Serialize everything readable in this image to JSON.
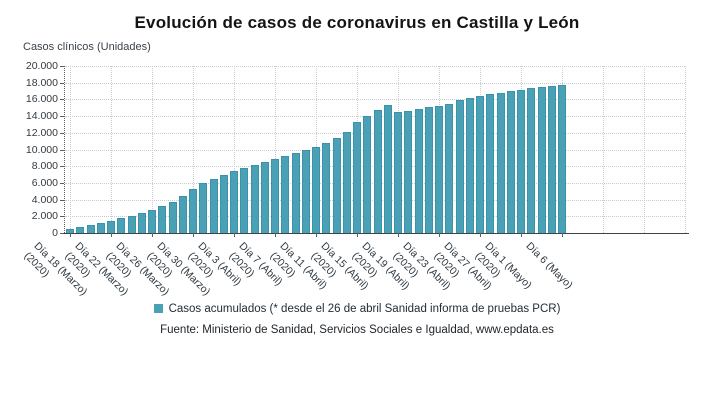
{
  "title": "Evolución de casos de coronavirus en Castilla y León",
  "unit_label": "Casos clínicos (Unidades)",
  "legend": {
    "label": "Casos acumulados (* desde el 26 de abril Sanidad informa de pruebas PCR)",
    "marker_color": "#4aa0b5"
  },
  "source": "Fuente: Ministerio de Sanidad, Servicios Sociales e Igualdad, www.epdata.es",
  "colors": {
    "bar": "#4aa0b5",
    "bar_edge": "#3a93a9",
    "grid": "#c7ccd1",
    "axis": "#3f4449",
    "text": "#2e3942"
  },
  "chart_data": {
    "type": "bar",
    "title": "Evolución de casos de coronavirus en Castilla y León",
    "ylabel": "Casos clínicos (Unidades)",
    "xlabel": "",
    "ylim": [
      0,
      20000
    ],
    "grid": "dotted",
    "legend_position": "bottom",
    "y_ticks": [
      {
        "value": 0,
        "label": "0"
      },
      {
        "value": 2000,
        "label": "2.000"
      },
      {
        "value": 4000,
        "label": "4.000"
      },
      {
        "value": 6000,
        "label": "6.000"
      },
      {
        "value": 8000,
        "label": "8.000"
      },
      {
        "value": 10000,
        "label": "10.000"
      },
      {
        "value": 12000,
        "label": "12.000"
      },
      {
        "value": 14000,
        "label": "14.000"
      },
      {
        "value": 16000,
        "label": "16.000"
      },
      {
        "value": 18000,
        "label": "18.000"
      },
      {
        "value": 20000,
        "label": "20.000"
      }
    ],
    "categories": [
      "Día 18 (Marzo)",
      "Día 19 (Marzo)",
      "Día 20 (Marzo)",
      "Día 21 (Marzo)",
      "Día 22 (Marzo)",
      "Día 23 (Marzo)",
      "Día 24 (Marzo)",
      "Día 25 (Marzo)",
      "Día 26 (Marzo)",
      "Día 27 (Marzo)",
      "Día 28 (Marzo)",
      "Día 29 (Marzo)",
      "Día 30 (Marzo)",
      "Día 31 (Marzo)",
      "Día 1 (Abril)",
      "Día 2 (Abril)",
      "Día 3 (Abril)",
      "Día 4 (Abril)",
      "Día 5 (Abril)",
      "Día 6 (Abril)",
      "Día 7 (Abril)",
      "Día 8 (Abril)",
      "Día 9 (Abril)",
      "Día 10 (Abril)",
      "Día 11 (Abril)",
      "Día 12 (Abril)",
      "Día 13 (Abril)",
      "Día 14 (Abril)",
      "Día 15 (Abril)",
      "Día 16 (Abril)",
      "Día 17 (Abril)",
      "Día 18 (Abril)",
      "Día 19 (Abril)",
      "Día 20 (Abril)",
      "Día 21 (Abril)",
      "Día 22 (Abril)",
      "Día 23 (Abril)",
      "Día 24 (Abril)",
      "Día 25 (Abril)",
      "Día 26 (Abril)",
      "Día 27 (Abril)",
      "Día 28 (Abril)",
      "Día 29 (Abril)",
      "Día 30 (Abril)",
      "Día 1 (Mayo)",
      "Día 2 (Mayo)",
      "Día 3 (Mayo)",
      "Día 4 (Mayo)",
      "Día 6 (Mayo)"
    ],
    "values": [
      500,
      700,
      950,
      1200,
      1475,
      1750,
      2050,
      2400,
      2800,
      3250,
      3700,
      4400,
      5300,
      6000,
      6500,
      6950,
      7400,
      7800,
      8150,
      8500,
      8850,
      9200,
      9550,
      9900,
      10300,
      10800,
      11400,
      12100,
      13350,
      14000,
      14700,
      15280,
      14450,
      14650,
      14850,
      15050,
      15250,
      15500,
      15900,
      16150,
      16400,
      16650,
      16800,
      17000,
      17150,
      17350,
      17500,
      17620,
      17700
    ],
    "series_name": "Casos acumulados (* desde el 26 de abril Sanidad informa de pruebas PCR)",
    "x_ticks": [
      {
        "index": 0,
        "lines": [
          "Día 18 (Marzo)",
          "(2020)"
        ]
      },
      {
        "index": 4,
        "lines": [
          "Día 22 (Marzo)",
          "(2020)"
        ]
      },
      {
        "index": 8,
        "lines": [
          "Día 26 (Marzo)",
          "(2020)"
        ]
      },
      {
        "index": 12,
        "lines": [
          "Día 30 (Marzo)",
          "(2020)"
        ]
      },
      {
        "index": 16,
        "lines": [
          "Día 3 (Abril)",
          "(2020)"
        ]
      },
      {
        "index": 20,
        "lines": [
          "Día 7 (Abril)",
          "(2020)"
        ]
      },
      {
        "index": 24,
        "lines": [
          "Día 11 (Abril)",
          "(2020)"
        ]
      },
      {
        "index": 28,
        "lines": [
          "Día 15 (Abril)",
          "(2020)"
        ]
      },
      {
        "index": 32,
        "lines": [
          "Día 19 (Abril)",
          "(2020)"
        ]
      },
      {
        "index": 36,
        "lines": [
          "Día 23 (Abril)",
          "(2020)"
        ]
      },
      {
        "index": 40,
        "lines": [
          "Día 27 (Abril)",
          "(2020)"
        ]
      },
      {
        "index": 44,
        "lines": [
          "Día 1 (Mayo)",
          "(2020)"
        ]
      },
      {
        "index": 48,
        "lines": [
          "Día 6 (Mayo)"
        ]
      }
    ]
  }
}
